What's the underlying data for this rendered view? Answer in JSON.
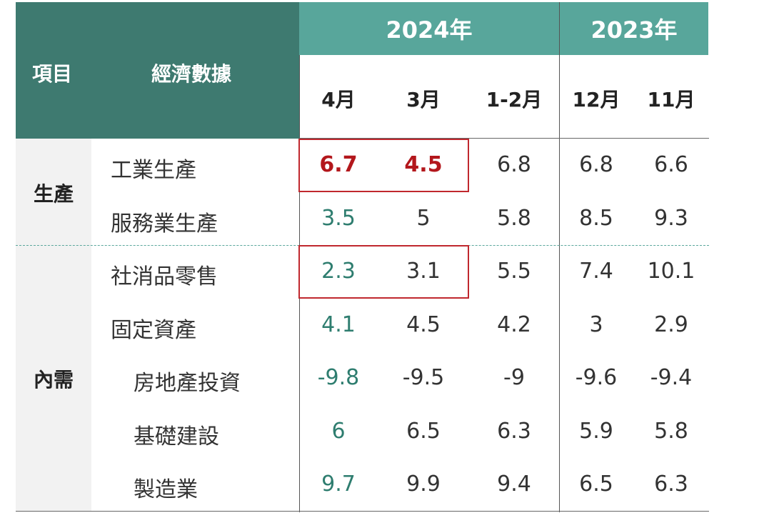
{
  "header": {
    "item_label": "項目",
    "data_label": "經濟數據",
    "years": [
      "2024年",
      "2023年"
    ],
    "months": [
      "4月",
      "3月",
      "1-2月",
      "12月",
      "11月"
    ]
  },
  "categories": {
    "production": "生產",
    "domestic_demand": "內需"
  },
  "rows": [
    {
      "label": "工業生產",
      "values": [
        "6.7",
        "4.5",
        "6.8",
        "6.8",
        "6.6"
      ]
    },
    {
      "label": "服務業生產",
      "values": [
        "3.5",
        "5",
        "5.8",
        "8.5",
        "9.3"
      ]
    },
    {
      "label": "社消品零售",
      "values": [
        "2.3",
        "3.1",
        "5.5",
        "7.4",
        "10.1"
      ]
    },
    {
      "label": "固定資產",
      "values": [
        "4.1",
        "4.5",
        "4.2",
        "3",
        "2.9"
      ]
    },
    {
      "label": "房地產投資",
      "values": [
        "-9.8",
        "-9.5",
        "-9",
        "-9.6",
        "-9.4"
      ]
    },
    {
      "label": "基礎建設",
      "values": [
        "6",
        "6.5",
        "6.3",
        "5.9",
        "5.8"
      ]
    },
    {
      "label": "製造業",
      "values": [
        "9.7",
        "9.9",
        "9.4",
        "6.5",
        "6.3"
      ]
    }
  ],
  "colors": {
    "header_dark": "#3e7a70",
    "header_teal": "#58a69b",
    "highlight_red": "#b3171c",
    "latest_month_teal": "#2e7d6f"
  }
}
